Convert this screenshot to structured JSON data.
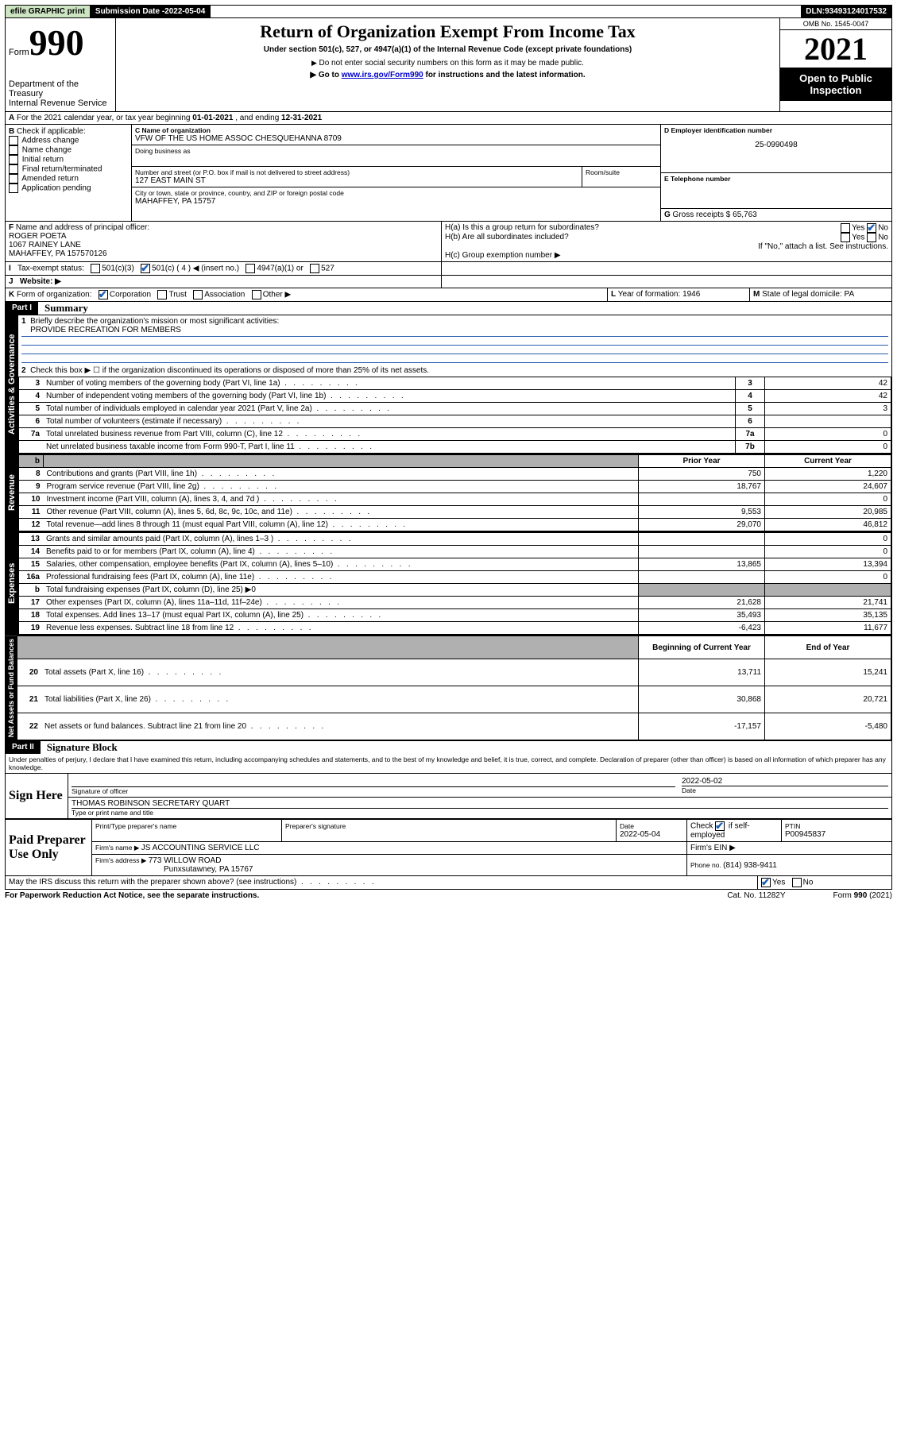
{
  "topbar": {
    "efile": "efile GRAPHIC print",
    "subdate_label": "Submission Date - ",
    "subdate": "2022-05-04",
    "dln_label": "DLN: ",
    "dln": "93493124017532"
  },
  "header": {
    "form_label": "Form",
    "form_no": "990",
    "dept": "Department of the Treasury",
    "irs": "Internal Revenue Service",
    "title": "Return of Organization Exempt From Income Tax",
    "sub1": "Under section 501(c), 527, or 4947(a)(1) of the Internal Revenue Code (except private foundations)",
    "sub2": "Do not enter social security numbers on this form as it may be made public.",
    "sub3_pre": "Go to ",
    "sub3_link": "www.irs.gov/Form990",
    "sub3_post": " for instructions and the latest information.",
    "omb_label": "OMB No. ",
    "omb": "1545-0047",
    "year": "2021",
    "open": "Open to Public Inspection"
  },
  "A": {
    "label": "A",
    "text": " For the 2021 calendar year, or tax year beginning ",
    "begin": "01-01-2021",
    "mid": " , and ending ",
    "end": "12-31-2021"
  },
  "B": {
    "label": "B",
    "title": " Check if applicable:",
    "items": [
      "Address change",
      "Name change",
      "Initial return",
      "Final return/terminated",
      "Amended return",
      "Application pending"
    ]
  },
  "C": {
    "name_label": "C Name of organization",
    "name": "VFW OF THE US HOME ASSOC CHESQUEHANNA 8709",
    "dba_label": "Doing business as",
    "street_label": "Number and street (or P.O. box if mail is not delivered to street address)",
    "room_label": "Room/suite",
    "street": "127 EAST MAIN ST",
    "city_label": "City or town, state or province, country, and ZIP or foreign postal code",
    "city": "MAHAFFEY, PA  15757"
  },
  "D": {
    "label": "D Employer identification number",
    "val": "25-0990498"
  },
  "E": {
    "label": "E Telephone number",
    "val": ""
  },
  "G": {
    "label": "G",
    "text": " Gross receipts $ ",
    "val": "65,763"
  },
  "F": {
    "label": "F",
    "text": " Name and address of principal officer:",
    "name": "ROGER POETA",
    "addr1": "1067 RAINEY LANE",
    "addr2": "MAHAFFEY, PA  157570126"
  },
  "H": {
    "a": "H(a)  Is this a group return for subordinates?",
    "b": "H(b)  Are all subordinates included?",
    "ifno": "If \"No,\" attach a list. See instructions.",
    "c": "H(c)  Group exemption number ▶",
    "yes": "Yes",
    "no": "No"
  },
  "I": {
    "label": "I",
    "text": "Tax-exempt status:",
    "o1": "501(c)(3)",
    "o2": "501(c) ( 4 ) ◀ (insert no.)",
    "o3": "4947(a)(1) or",
    "o4": "527"
  },
  "J": {
    "label": "J",
    "text": "Website: ▶"
  },
  "K": {
    "label": "K",
    "text": " Form of organization:",
    "o1": "Corporation",
    "o2": "Trust",
    "o3": "Association",
    "o4": "Other ▶"
  },
  "L": {
    "label": "L",
    "text": " Year of formation: ",
    "val": "1946"
  },
  "M": {
    "label": "M",
    "text": " State of legal domicile: ",
    "val": "PA"
  },
  "part1": {
    "bar": "Part I",
    "title": "Summary",
    "l1": "Briefly describe the organization's mission or most significant activities:",
    "l1v": "PROVIDE RECREATION FOR MEMBERS",
    "l2": "Check this box ▶ ☐  if the organization discontinued its operations or disposed of more than 25% of its net assets.",
    "tabs": {
      "ag": "Activities & Governance",
      "rev": "Revenue",
      "exp": "Expenses",
      "net": "Net Assets or Fund Balances"
    },
    "hdr_prior": "Prior Year",
    "hdr_curr": "Current Year",
    "hdr_boy": "Beginning of Current Year",
    "hdr_eoy": "End of Year",
    "rows_ag": [
      {
        "n": "3",
        "d": "Number of voting members of the governing body (Part VI, line 1a)",
        "b": "3",
        "v": "42"
      },
      {
        "n": "4",
        "d": "Number of independent voting members of the governing body (Part VI, line 1b)",
        "b": "4",
        "v": "42"
      },
      {
        "n": "5",
        "d": "Total number of individuals employed in calendar year 2021 (Part V, line 2a)",
        "b": "5",
        "v": "3"
      },
      {
        "n": "6",
        "d": "Total number of volunteers (estimate if necessary)",
        "b": "6",
        "v": ""
      },
      {
        "n": "7a",
        "d": "Total unrelated business revenue from Part VIII, column (C), line 12",
        "b": "7a",
        "v": "0"
      },
      {
        "n": "",
        "d": "Net unrelated business taxable income from Form 990-T, Part I, line 11",
        "b": "7b",
        "v": "0"
      }
    ],
    "rows_rev": [
      {
        "n": "8",
        "d": "Contributions and grants (Part VIII, line 1h)",
        "p": "750",
        "c": "1,220"
      },
      {
        "n": "9",
        "d": "Program service revenue (Part VIII, line 2g)",
        "p": "18,767",
        "c": "24,607"
      },
      {
        "n": "10",
        "d": "Investment income (Part VIII, column (A), lines 3, 4, and 7d )",
        "p": "",
        "c": "0"
      },
      {
        "n": "11",
        "d": "Other revenue (Part VIII, column (A), lines 5, 6d, 8c, 9c, 10c, and 11e)",
        "p": "9,553",
        "c": "20,985"
      },
      {
        "n": "12",
        "d": "Total revenue—add lines 8 through 11 (must equal Part VIII, column (A), line 12)",
        "p": "29,070",
        "c": "46,812"
      }
    ],
    "rows_exp": [
      {
        "n": "13",
        "d": "Grants and similar amounts paid (Part IX, column (A), lines 1–3 )",
        "p": "",
        "c": "0"
      },
      {
        "n": "14",
        "d": "Benefits paid to or for members (Part IX, column (A), line 4)",
        "p": "",
        "c": "0"
      },
      {
        "n": "15",
        "d": "Salaries, other compensation, employee benefits (Part IX, column (A), lines 5–10)",
        "p": "13,865",
        "c": "13,394"
      },
      {
        "n": "16a",
        "d": "Professional fundraising fees (Part IX, column (A), line 11e)",
        "p": "",
        "c": "0"
      },
      {
        "n": "b",
        "d": "Total fundraising expenses (Part IX, column (D), line 25) ▶0",
        "p": "shade",
        "c": "shade"
      },
      {
        "n": "17",
        "d": "Other expenses (Part IX, column (A), lines 11a–11d, 11f–24e)",
        "p": "21,628",
        "c": "21,741"
      },
      {
        "n": "18",
        "d": "Total expenses. Add lines 13–17 (must equal Part IX, column (A), line 25)",
        "p": "35,493",
        "c": "35,135"
      },
      {
        "n": "19",
        "d": "Revenue less expenses. Subtract line 18 from line 12",
        "p": "-6,423",
        "c": "11,677"
      }
    ],
    "rows_net": [
      {
        "n": "20",
        "d": "Total assets (Part X, line 16)",
        "p": "13,711",
        "c": "15,241"
      },
      {
        "n": "21",
        "d": "Total liabilities (Part X, line 26)",
        "p": "30,868",
        "c": "20,721"
      },
      {
        "n": "22",
        "d": "Net assets or fund balances. Subtract line 21 from line 20",
        "p": "-17,157",
        "c": "-5,480"
      }
    ]
  },
  "part2": {
    "bar": "Part II",
    "title": "Signature Block",
    "decl": "Under penalties of perjury, I declare that I have examined this return, including accompanying schedules and statements, and to the best of my knowledge and belief, it is true, correct, and complete. Declaration of preparer (other than officer) is based on all information of which preparer has any knowledge.",
    "sign_here": "Sign Here",
    "sig_officer": "Signature of officer",
    "date_label": "Date",
    "date_val": "2022-05-02",
    "officer_name": "THOMAS ROBINSON  SECRETARY QUART",
    "type_label": "Type or print name and title",
    "paid": "Paid Preparer Use Only",
    "pth": "Print/Type preparer's name",
    "psig": "Preparer's signature",
    "pdate": "Date",
    "pdate_v": "2022-05-04",
    "pcheck": "Check ☑ if self-employed",
    "ptin": "PTIN",
    "ptin_v": "P00945837",
    "firm_name_l": "Firm's name   ▶ ",
    "firm_name": "JS ACCOUNTING SERVICE LLC",
    "firm_ein_l": "Firm's EIN ▶",
    "firm_addr_l": "Firm's address ▶ ",
    "firm_addr1": "773 WILLOW ROAD",
    "firm_addr2": "Punxsutawney, PA  15767",
    "phone_l": "Phone no. ",
    "phone": "(814) 938-9411",
    "discuss": "May the IRS discuss this return with the preparer shown above? (see instructions)",
    "foot_l": "For Paperwork Reduction Act Notice, see the separate instructions.",
    "foot_m": "Cat. No. 11282Y",
    "foot_r": "Form 990 (2021)"
  }
}
